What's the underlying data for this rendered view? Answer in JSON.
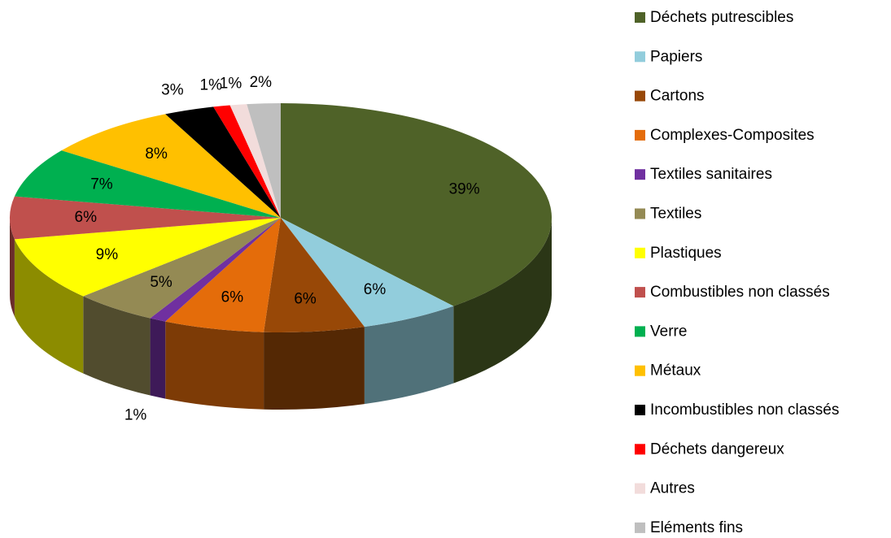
{
  "chart_data": {
    "type": "pie",
    "categories": [
      "Déchets putrescibles",
      "Papiers",
      "Cartons",
      "Complexes-Composites",
      "Textiles sanitaires",
      "Textiles",
      "Plastiques",
      "Combustibles non classés",
      "Verre",
      "Métaux",
      "Incombustibles non classés",
      "Déchets dangereux",
      "Autres",
      "Eléments fins"
    ],
    "values": [
      39,
      6,
      6,
      6,
      1,
      5,
      9,
      6,
      7,
      8,
      3,
      1,
      1,
      2
    ],
    "value_labels": [
      "39%",
      "6%",
      "6%",
      "6%",
      "1%",
      "5%",
      "9%",
      "6%",
      "7%",
      "8%",
      "3%",
      "1%",
      "1%",
      "2%"
    ],
    "colors": [
      "#4f6228",
      "#92cddc",
      "#984807",
      "#e46c0a",
      "#7030a0",
      "#948a54",
      "#ffff00",
      "#c0504d",
      "#00b050",
      "#ffc000",
      "#000000",
      "#ff0000",
      "#f2dcdb",
      "#bfbfbf"
    ],
    "legend": "right"
  }
}
